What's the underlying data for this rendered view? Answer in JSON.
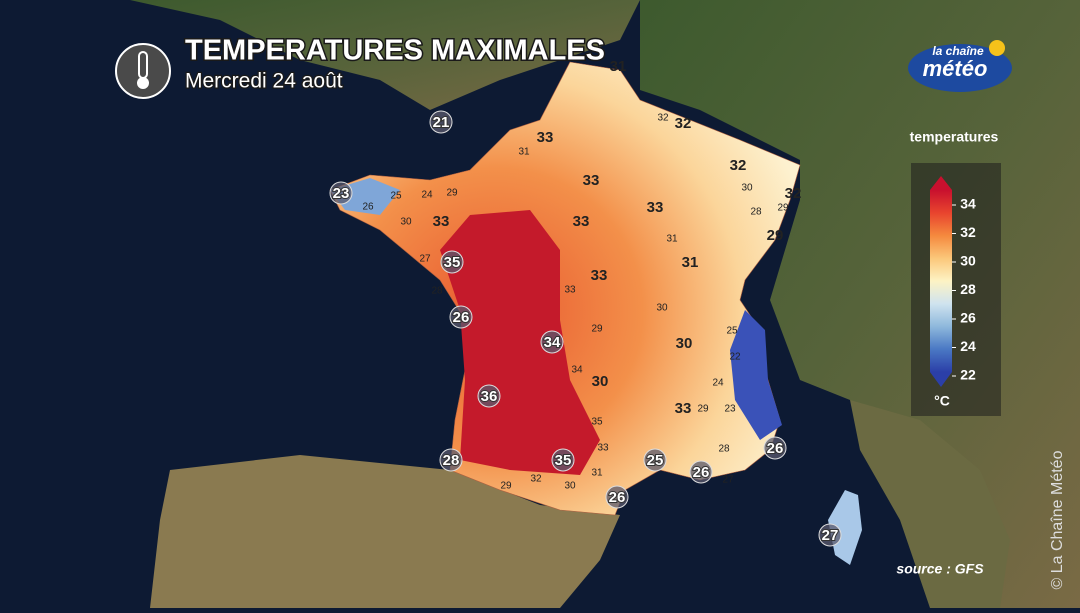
{
  "header": {
    "title": "TEMPERATURES MAXIMALES",
    "subtitle": "Mercredi 24 août"
  },
  "logo": {
    "line1": "la chaîne",
    "line2": "météo"
  },
  "legend": {
    "title": "temperatures",
    "unit": "°C",
    "ticks": [
      34,
      32,
      30,
      28,
      26,
      24,
      22
    ],
    "colors": [
      "#c8102e",
      "#e8442e",
      "#f5893e",
      "#fbc77a",
      "#fdf3c4",
      "#cfe3ef",
      "#8eb8dc",
      "#4a78c4",
      "#2b3fa8"
    ]
  },
  "map_labels": [
    31,
    33,
    32,
    32,
    32,
    33,
    33,
    33,
    33,
    29,
    35,
    31,
    33,
    26,
    34,
    30,
    30,
    36,
    33,
    28,
    35,
    25,
    26,
    26,
    26,
    27,
    21,
    23,
    32,
    31,
    29,
    24,
    25,
    26,
    30,
    27,
    28,
    33,
    30,
    28,
    29,
    31,
    29,
    30,
    25,
    22,
    34,
    24,
    23,
    29,
    35,
    33,
    28,
    31,
    30,
    32,
    29,
    27
  ],
  "source": "source : GFS",
  "copyright": "© La Chaîne Météo"
}
